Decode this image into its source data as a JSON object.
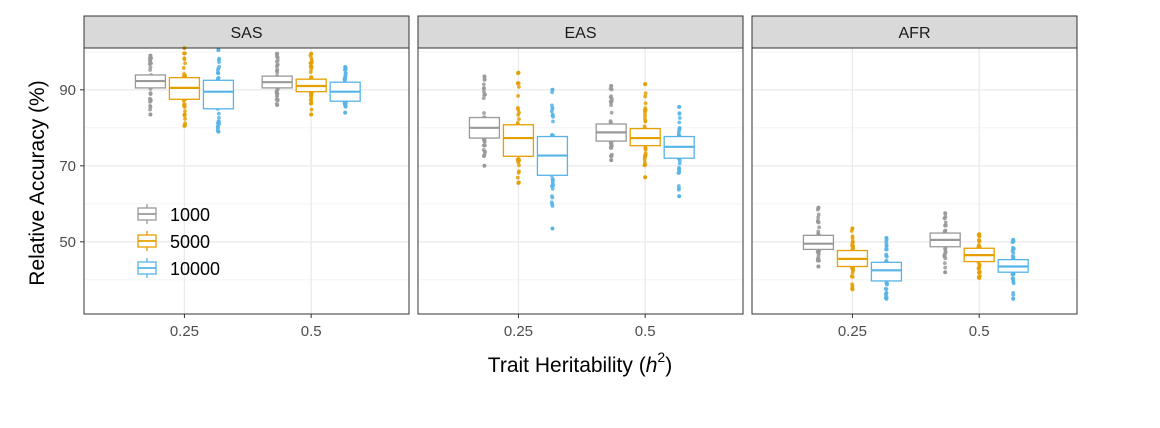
{
  "chart_data": {
    "type": "boxplot",
    "xlabel_main": "Trait Heritability (",
    "xlabel_var": "h",
    "xlabel_sup": "2",
    "xlabel_end": ")",
    "ylabel": "Relative Accuracy (%)",
    "ylim": [
      31,
      101
    ],
    "yticks": [
      50,
      70,
      90
    ],
    "categories": [
      "0.25",
      "0.5"
    ],
    "grid": true,
    "legend": {
      "position": "inside-left",
      "entries": [
        {
          "label": "1000",
          "color": "#999999"
        },
        {
          "label": "5000",
          "color": "#E69F00"
        },
        {
          "label": "10000",
          "color": "#56B4E9"
        }
      ]
    },
    "panels": [
      {
        "title": "SAS",
        "series": [
          {
            "name": "1000",
            "boxes": [
              {
                "x": "0.25",
                "min": 83.5,
                "q1": 90.5,
                "median": 92.3,
                "q3": 93.9,
                "max": 99.0
              },
              {
                "x": "0.5",
                "min": 86.0,
                "q1": 90.5,
                "median": 92.0,
                "q3": 93.6,
                "max": 99.5
              }
            ]
          },
          {
            "name": "5000",
            "boxes": [
              {
                "x": "0.25",
                "min": 80.5,
                "q1": 87.5,
                "median": 90.5,
                "q3": 93.2,
                "max": 101.0
              },
              {
                "x": "0.5",
                "min": 83.5,
                "q1": 89.5,
                "median": 91.0,
                "q3": 92.8,
                "max": 99.5
              }
            ]
          },
          {
            "name": "10000",
            "boxes": [
              {
                "x": "0.25",
                "min": 79.0,
                "q1": 85.0,
                "median": 89.5,
                "q3": 92.5,
                "max": 100.5
              },
              {
                "x": "0.5",
                "min": 84.0,
                "q1": 87.0,
                "median": 89.5,
                "q3": 92.0,
                "max": 96.0
              }
            ]
          }
        ]
      },
      {
        "title": "EAS",
        "series": [
          {
            "name": "1000",
            "boxes": [
              {
                "x": "0.25",
                "min": 70.0,
                "q1": 77.3,
                "median": 80.0,
                "q3": 82.7,
                "max": 93.5
              },
              {
                "x": "0.5",
                "min": 71.5,
                "q1": 76.5,
                "median": 78.8,
                "q3": 81.0,
                "max": 91.0
              }
            ]
          },
          {
            "name": "5000",
            "boxes": [
              {
                "x": "0.25",
                "min": 65.5,
                "q1": 72.5,
                "median": 77.3,
                "q3": 80.8,
                "max": 94.5
              },
              {
                "x": "0.5",
                "min": 67.0,
                "q1": 75.3,
                "median": 77.3,
                "q3": 79.8,
                "max": 91.5
              }
            ]
          },
          {
            "name": "10000",
            "boxes": [
              {
                "x": "0.25",
                "min": 53.5,
                "q1": 67.5,
                "median": 72.7,
                "q3": 77.7,
                "max": 90.0
              },
              {
                "x": "0.5",
                "min": 62.0,
                "q1": 72.0,
                "median": 75.0,
                "q3": 77.7,
                "max": 85.5
              }
            ]
          }
        ]
      },
      {
        "title": "AFR",
        "series": [
          {
            "name": "1000",
            "boxes": [
              {
                "x": "0.25",
                "min": 43.5,
                "q1": 48.0,
                "median": 49.5,
                "q3": 51.7,
                "max": 59.0
              },
              {
                "x": "0.5",
                "min": 42.0,
                "q1": 48.7,
                "median": 50.5,
                "q3": 52.3,
                "max": 57.5
              }
            ]
          },
          {
            "name": "5000",
            "boxes": [
              {
                "x": "0.25",
                "min": 37.5,
                "q1": 43.5,
                "median": 45.5,
                "q3": 47.7,
                "max": 53.5
              },
              {
                "x": "0.5",
                "min": 40.5,
                "q1": 44.8,
                "median": 46.5,
                "q3": 48.3,
                "max": 52.0
              }
            ]
          },
          {
            "name": "10000",
            "boxes": [
              {
                "x": "0.25",
                "min": 35.0,
                "q1": 39.7,
                "median": 42.5,
                "q3": 44.6,
                "max": 51.0
              },
              {
                "x": "0.5",
                "min": 35.0,
                "q1": 42.0,
                "median": 43.5,
                "q3": 45.3,
                "max": 50.5
              }
            ]
          }
        ]
      }
    ]
  }
}
